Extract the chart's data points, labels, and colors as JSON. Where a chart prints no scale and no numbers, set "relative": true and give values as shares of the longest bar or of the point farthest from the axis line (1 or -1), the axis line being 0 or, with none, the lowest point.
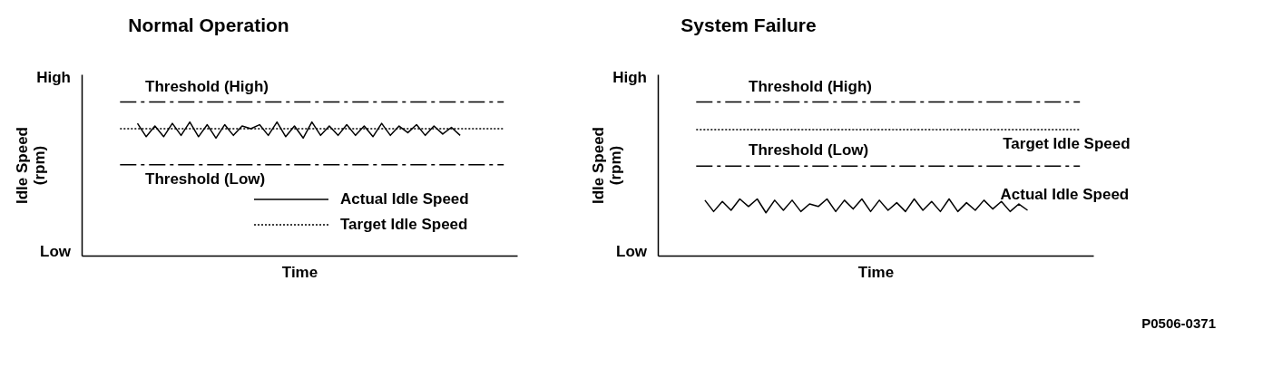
{
  "chart_data": [
    {
      "type": "line",
      "title": "Normal Operation",
      "xlabel": "Time",
      "ylabel": "Idle Speed (rpm)",
      "relative": true,
      "legend": "bottom right",
      "categories": [
        null,
        null,
        null,
        null,
        null,
        null,
        null,
        null,
        null,
        null,
        null,
        null,
        null,
        null,
        null,
        null,
        null,
        null,
        null,
        null,
        null,
        null,
        null,
        null,
        null,
        null,
        null,
        null,
        null,
        null,
        null,
        null,
        null,
        null,
        null,
        null,
        null,
        null,
        null,
        null,
        null,
        null,
        null,
        null,
        null
      ],
      "series": [
        {
          "name": "Actual Idle Speed",
          "color": "#000000",
          "line_style": "solid",
          "values": [
            null,
            null,
            0.99,
            0.89,
            0.97,
            0.89,
            0.99,
            0.9,
            1.0,
            0.89,
            0.98,
            0.88,
            0.98,
            0.9,
            0.97,
            0.95,
            0.98,
            0.9,
            1.0,
            0.89,
            0.97,
            0.88,
            1.0,
            0.9,
            0.97,
            0.9,
            0.98,
            0.9,
            0.97,
            0.89,
            0.99,
            0.9,
            0.97,
            0.92,
            0.98,
            0.9,
            0.97,
            0.91,
            0.96,
            0.9,
            null,
            null,
            null,
            null,
            null
          ]
        },
        {
          "name": "Target Idle Speed",
          "color": "#000000",
          "line_style": "dotted",
          "values": [
            0.95,
            0.95,
            0.95,
            0.95,
            0.95,
            0.95,
            0.95,
            0.95,
            0.95,
            0.95,
            0.95,
            0.95,
            0.95,
            0.95,
            0.95,
            0.95,
            0.95,
            0.95,
            0.95,
            0.95,
            0.95,
            0.95,
            0.95,
            0.95,
            0.95,
            0.95,
            0.95,
            0.95,
            0.95,
            0.95,
            0.95,
            0.95,
            0.95,
            0.95,
            0.95,
            0.95,
            0.95,
            0.95,
            0.95,
            0.95,
            0.95,
            0.95,
            0.95,
            0.95,
            0.95
          ]
        }
      ],
      "ref_lines": [
        {
          "axis": "y",
          "value": 1.15,
          "label": "Threshold (High)",
          "color": "#000000",
          "line_style": "dashed"
        },
        {
          "axis": "y",
          "value": 0.68,
          "label": "Threshold (Low)",
          "color": "#000000",
          "line_style": "dashed"
        }
      ],
      "annotations": [
        "High",
        "Low"
      ]
    },
    {
      "type": "line",
      "title": "System Failure",
      "xlabel": "Time",
      "ylabel": "Idle Speed (rpm)",
      "relative": true,
      "categories": [
        null,
        null,
        null,
        null,
        null,
        null,
        null,
        null,
        null,
        null,
        null,
        null,
        null,
        null,
        null,
        null,
        null,
        null,
        null,
        null,
        null,
        null,
        null,
        null,
        null,
        null,
        null,
        null,
        null,
        null,
        null,
        null,
        null,
        null,
        null,
        null,
        null,
        null,
        null,
        null,
        null,
        null,
        null,
        null,
        null
      ],
      "series": [
        {
          "name": "Actual Idle Speed",
          "color": "#000000",
          "line_style": "solid",
          "values": [
            null,
            0.44,
            0.35,
            0.43,
            0.36,
            0.45,
            0.39,
            0.45,
            0.34,
            0.44,
            0.36,
            0.44,
            0.35,
            0.41,
            0.39,
            0.45,
            0.35,
            0.44,
            0.37,
            0.45,
            0.35,
            0.44,
            0.36,
            0.42,
            0.35,
            0.45,
            0.36,
            0.43,
            0.35,
            0.45,
            0.35,
            0.42,
            0.36,
            0.44,
            0.37,
            0.43,
            0.35,
            0.41,
            0.36,
            null,
            null,
            null,
            null,
            null,
            null
          ]
        },
        {
          "name": "Target Idle Speed",
          "color": "#000000",
          "line_style": "dotted",
          "values": [
            1.0,
            1.0,
            1.0,
            1.0,
            1.0,
            1.0,
            1.0,
            1.0,
            1.0,
            1.0,
            1.0,
            1.0,
            1.0,
            1.0,
            1.0,
            1.0,
            1.0,
            1.0,
            1.0,
            1.0,
            1.0,
            1.0,
            1.0,
            1.0,
            1.0,
            1.0,
            1.0,
            1.0,
            1.0,
            1.0,
            1.0,
            1.0,
            1.0,
            1.0,
            1.0,
            1.0,
            1.0,
            1.0,
            1.0,
            1.0,
            1.0,
            1.0,
            1.0,
            1.0,
            1.0
          ]
        }
      ],
      "ref_lines": [
        {
          "axis": "y",
          "value": 1.22,
          "label": "Threshold (High)",
          "color": "#000000",
          "line_style": "dashed"
        },
        {
          "axis": "y",
          "value": 0.71,
          "label": "Threshold (Low)",
          "color": "#000000",
          "line_style": "dashed"
        }
      ],
      "annotations": [
        "High",
        "Low",
        "P0506-0371"
      ]
    }
  ]
}
